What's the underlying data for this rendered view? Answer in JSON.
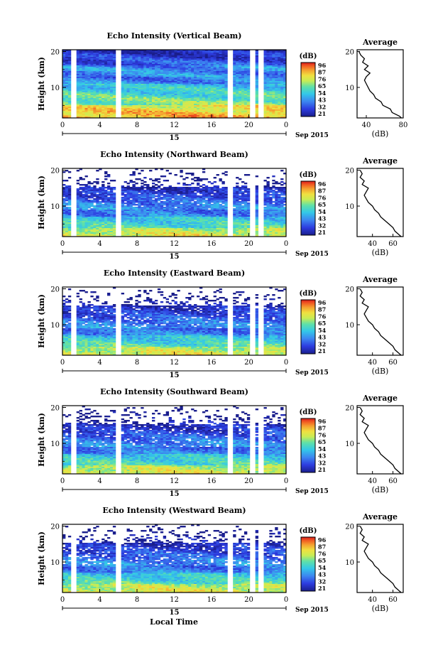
{
  "figure": {
    "xlabel": "Local Time",
    "date_label": "Sep 2015",
    "day_label": "15",
    "colorbar_unit": "(dB)",
    "avg_title": "Average",
    "avg_xlabel": "(dB)",
    "ylabel": "Height (km)"
  },
  "chart_data": [
    {
      "type": "heatmap",
      "title": "Echo Intensity (Vertical Beam)",
      "ylabel": "Height (km)",
      "xlabel": "Local Time",
      "x_ticks": [
        "0",
        "4",
        "8",
        "12",
        "16",
        "20",
        "0"
      ],
      "xlim": [
        0,
        24
      ],
      "y_ticks": [
        "10",
        "20"
      ],
      "ylim": [
        1.5,
        20.5
      ],
      "colorbar_ticks": [
        "96",
        "87",
        "76",
        "65",
        "54",
        "43",
        "32",
        "21"
      ],
      "colorbar_range": [
        21,
        96
      ],
      "missing_bands": [
        [
          1.0,
          1.3
        ],
        [
          5.7,
          6.0
        ],
        [
          17.6,
          18.2
        ],
        [
          20.2,
          20.6
        ],
        [
          21.0,
          21.4
        ]
      ],
      "profile": {
        "title": "Average",
        "xlabel": "(dB)",
        "xticks": [
          "40",
          "80"
        ],
        "xlim": [
          30,
          80
        ],
        "heights": [
          1.5,
          2,
          3,
          4,
          5,
          6,
          7,
          8,
          9,
          10,
          11,
          12,
          13,
          14,
          15,
          16,
          17,
          18,
          19,
          20
        ],
        "values": [
          78,
          76,
          68,
          66,
          58,
          56,
          50,
          48,
          44,
          42,
          40,
          38,
          40,
          44,
          38,
          42,
          36,
          38,
          34,
          32
        ]
      }
    },
    {
      "type": "heatmap",
      "title": "Echo Intensity (Northward Beam)",
      "ylabel": "Height (km)",
      "xlabel": "Local Time",
      "x_ticks": [
        "0",
        "4",
        "8",
        "12",
        "16",
        "20",
        "0"
      ],
      "xlim": [
        0,
        24
      ],
      "y_ticks": [
        "10",
        "20"
      ],
      "ylim": [
        1.5,
        20.5
      ],
      "colorbar_ticks": [
        "96",
        "87",
        "76",
        "65",
        "54",
        "43",
        "32",
        "21"
      ],
      "colorbar_range": [
        21,
        96
      ],
      "missing_bands": [
        [
          1.0,
          1.3
        ],
        [
          5.7,
          6.0
        ],
        [
          17.6,
          18.2
        ],
        [
          20.2,
          20.6
        ],
        [
          21.0,
          21.4
        ]
      ],
      "profile": {
        "title": "Average",
        "xlabel": "(dB)",
        "xticks": [
          "40",
          "60"
        ],
        "xlim": [
          25,
          70
        ],
        "heights": [
          1.5,
          2,
          3,
          4,
          5,
          6,
          7,
          8,
          9,
          10,
          11,
          12,
          13,
          14,
          15,
          16,
          17,
          18,
          19,
          20
        ],
        "values": [
          68,
          66,
          62,
          60,
          56,
          52,
          48,
          46,
          42,
          40,
          36,
          34,
          32,
          34,
          36,
          30,
          32,
          28,
          30,
          28
        ]
      }
    },
    {
      "type": "heatmap",
      "title": "Echo Intensity (Eastward Beam)",
      "ylabel": "Height (km)",
      "xlabel": "Local Time",
      "x_ticks": [
        "0",
        "4",
        "8",
        "12",
        "16",
        "20",
        "0"
      ],
      "xlim": [
        0,
        24
      ],
      "y_ticks": [
        "10",
        "20"
      ],
      "ylim": [
        1.5,
        20.5
      ],
      "colorbar_ticks": [
        "96",
        "87",
        "76",
        "65",
        "54",
        "43",
        "32",
        "21"
      ],
      "colorbar_range": [
        21,
        96
      ],
      "missing_bands": [
        [
          1.0,
          1.3
        ],
        [
          5.7,
          6.0
        ],
        [
          17.6,
          18.2
        ],
        [
          20.2,
          20.6
        ],
        [
          21.0,
          21.4
        ]
      ],
      "profile": {
        "title": "Average",
        "xlabel": "(dB)",
        "xticks": [
          "40",
          "60"
        ],
        "xlim": [
          25,
          70
        ],
        "heights": [
          1.5,
          2,
          3,
          4,
          5,
          6,
          7,
          8,
          9,
          10,
          11,
          12,
          13,
          14,
          15,
          16,
          17,
          18,
          19,
          20
        ],
        "values": [
          68,
          66,
          62,
          60,
          56,
          52,
          48,
          46,
          42,
          40,
          36,
          34,
          32,
          34,
          36,
          30,
          32,
          28,
          30,
          28
        ]
      }
    },
    {
      "type": "heatmap",
      "title": "Echo Intensity (Southward Beam)",
      "ylabel": "Height (km)",
      "xlabel": "Local Time",
      "x_ticks": [
        "0",
        "4",
        "8",
        "12",
        "16",
        "20",
        "0"
      ],
      "xlim": [
        0,
        24
      ],
      "y_ticks": [
        "10",
        "20"
      ],
      "ylim": [
        1.5,
        20.5
      ],
      "colorbar_ticks": [
        "96",
        "87",
        "76",
        "65",
        "54",
        "43",
        "32",
        "21"
      ],
      "colorbar_range": [
        21,
        96
      ],
      "missing_bands": [
        [
          1.0,
          1.3
        ],
        [
          5.7,
          6.0
        ],
        [
          17.6,
          18.2
        ],
        [
          20.2,
          20.6
        ],
        [
          21.0,
          21.4
        ]
      ],
      "profile": {
        "title": "Average",
        "xlabel": "(dB)",
        "xticks": [
          "40",
          "60"
        ],
        "xlim": [
          25,
          70
        ],
        "heights": [
          1.5,
          2,
          3,
          4,
          5,
          6,
          7,
          8,
          9,
          10,
          11,
          12,
          13,
          14,
          15,
          16,
          17,
          18,
          19,
          20
        ],
        "values": [
          68,
          66,
          62,
          60,
          56,
          52,
          48,
          46,
          42,
          40,
          36,
          34,
          32,
          34,
          36,
          30,
          32,
          28,
          30,
          28
        ]
      }
    },
    {
      "type": "heatmap",
      "title": "Echo Intensity (Westward Beam)",
      "ylabel": "Height (km)",
      "xlabel": "Local Time",
      "x_ticks": [
        "0",
        "4",
        "8",
        "12",
        "16",
        "20",
        "0"
      ],
      "xlim": [
        0,
        24
      ],
      "y_ticks": [
        "10",
        "20"
      ],
      "ylim": [
        1.5,
        20.5
      ],
      "colorbar_ticks": [
        "96",
        "87",
        "76",
        "65",
        "54",
        "43",
        "32",
        "21"
      ],
      "colorbar_range": [
        21,
        96
      ],
      "missing_bands": [
        [
          1.0,
          1.3
        ],
        [
          5.7,
          6.0
        ],
        [
          17.6,
          18.2
        ],
        [
          20.2,
          20.6
        ],
        [
          21.0,
          21.4
        ]
      ],
      "profile": {
        "title": "Average",
        "xlabel": "(dB)",
        "xticks": [
          "40",
          "60"
        ],
        "xlim": [
          25,
          70
        ],
        "heights": [
          1.5,
          2,
          3,
          4,
          5,
          6,
          7,
          8,
          9,
          10,
          11,
          12,
          13,
          14,
          15,
          16,
          17,
          18,
          19,
          20
        ],
        "values": [
          68,
          66,
          62,
          60,
          56,
          52,
          48,
          46,
          42,
          40,
          36,
          34,
          32,
          34,
          36,
          30,
          32,
          28,
          30,
          28
        ]
      }
    }
  ]
}
